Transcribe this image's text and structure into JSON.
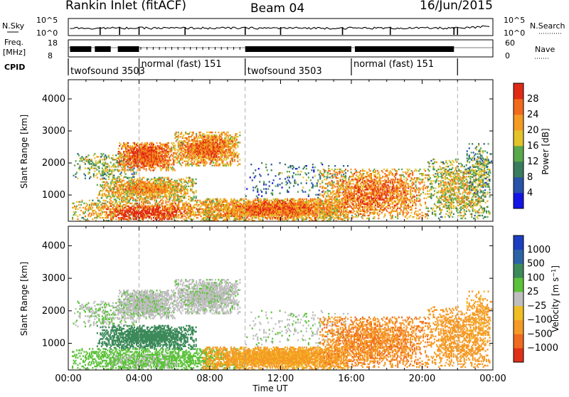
{
  "header": {
    "station": "Rankin Inlet (fitACF)",
    "beam": "Beam 04",
    "date": "16/Jun/2015"
  },
  "strip_labels": {
    "nsky": "N.Sky",
    "nsky_ticks": [
      "10^5",
      "10^0"
    ],
    "nsearch": "N.Search",
    "nsearch_ticks": [
      "10^5",
      "10^0"
    ],
    "freq_l1": "Freq.",
    "freq_l2": "[MHz]",
    "freq_ticks": [
      "18",
      "8"
    ],
    "nave": "Nave",
    "nave_ticks": [
      "60",
      "0"
    ],
    "cpid": "CPID"
  },
  "cpid_segments": [
    {
      "start": 0.0,
      "end": 4.0,
      "label": "twofsound 3503"
    },
    {
      "start": 4.0,
      "end": 10.0,
      "label": "normal (fast) 151"
    },
    {
      "start": 10.0,
      "end": 16.0,
      "label": "twofsound 3503"
    },
    {
      "start": 16.0,
      "end": 22.0,
      "label": "normal (fast) 151"
    }
  ],
  "chart_data": [
    {
      "type": "heatmap",
      "title": "Rankin Inlet (fitACF)",
      "xlabel": "Time UT",
      "ylabel": "Slant Range [km]",
      "x_ticks": [
        "00:00",
        "04:00",
        "08:00",
        "12:00",
        "16:00",
        "20:00",
        "00:00"
      ],
      "xlim_hours": [
        0,
        24
      ],
      "y_ticks": [
        1000,
        2000,
        3000,
        4000
      ],
      "ylim_km": [
        180,
        4600
      ],
      "colorbar_label": "Power [dB]",
      "colorbar_ticks": [
        4,
        8,
        12,
        16,
        20,
        24,
        28
      ],
      "clim": [
        0,
        32
      ],
      "colorbar_colors": [
        "#1414e6",
        "#2853a8",
        "#3a7c5e",
        "#5aa84c",
        "#e4c22a",
        "#f59a23",
        "#f26a1b",
        "#e02a16"
      ]
    },
    {
      "type": "heatmap",
      "xlabel": "Time UT",
      "ylabel": "Slant Range [km]",
      "x_ticks": [
        "00:00",
        "04:00",
        "08:00",
        "12:00",
        "16:00",
        "20:00",
        "00:00"
      ],
      "xlim_hours": [
        0,
        24
      ],
      "y_ticks": [
        1000,
        2000,
        3000,
        4000
      ],
      "ylim_km": [
        180,
        4600
      ],
      "colorbar_label": "Velocity [m s^-1]",
      "colorbar_ticks": [
        "1000",
        "500",
        "100",
        "25",
        "−25",
        "−100",
        "−500",
        "−1000"
      ],
      "colorbar_colors": [
        "#1c3ec2",
        "#2b63a6",
        "#3c8a5a",
        "#5cc23a",
        "#bebebe",
        "#f0be24",
        "#f59a26",
        "#f06a20",
        "#e03018"
      ]
    }
  ],
  "echo_regions": [
    {
      "t0": 0.2,
      "t1": 3.9,
      "r0": 1500,
      "r1": 2300,
      "p": 11,
      "v": 25,
      "d": 0.35
    },
    {
      "t0": 2.8,
      "t1": 6.0,
      "r0": 1750,
      "r1": 2650,
      "p": 22,
      "v": 5,
      "d": 0.85
    },
    {
      "t0": 6.0,
      "t1": 9.7,
      "r0": 1900,
      "r1": 2950,
      "p": 20,
      "v": 5,
      "d": 0.8
    },
    {
      "t0": 1.6,
      "t1": 7.2,
      "r0": 800,
      "r1": 1550,
      "p": 17,
      "v": 250,
      "d": 0.75
    },
    {
      "t0": 0.2,
      "t1": 9.8,
      "r0": 180,
      "r1": 850,
      "p": 18,
      "v": 60,
      "d": 0.5
    },
    {
      "t0": 2.2,
      "t1": 6.2,
      "r0": 180,
      "r1": 650,
      "p": 28,
      "v": 30,
      "d": 0.45
    },
    {
      "t0": 7.6,
      "t1": 15.8,
      "r0": 180,
      "r1": 900,
      "p": 20,
      "v": -150,
      "d": 0.9
    },
    {
      "t0": 10.0,
      "t1": 16.0,
      "r0": 900,
      "r1": 2000,
      "p": 6,
      "v": 10,
      "d": 0.1
    },
    {
      "t0": 14.2,
      "t1": 20.3,
      "r0": 250,
      "r1": 1800,
      "p": 20,
      "v": -400,
      "d": 0.55
    },
    {
      "t0": 20.3,
      "t1": 23.8,
      "r0": 250,
      "r1": 2100,
      "p": 14,
      "v": -280,
      "d": 0.45
    },
    {
      "t0": 22.5,
      "t1": 23.9,
      "r0": 1000,
      "r1": 2600,
      "p": 10,
      "v": -150,
      "d": 0.3
    }
  ]
}
